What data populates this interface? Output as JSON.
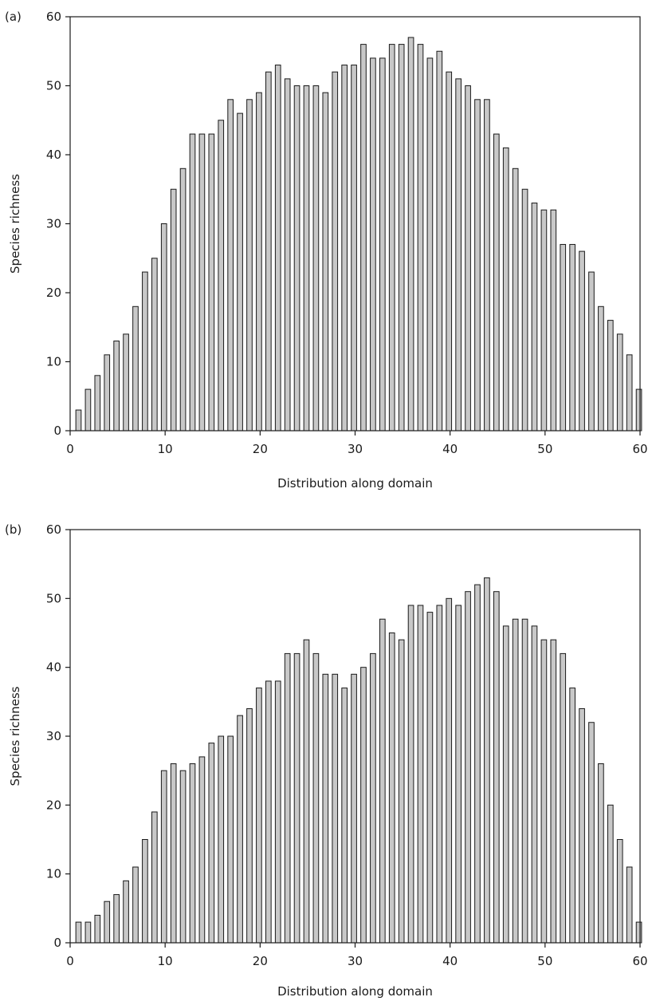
{
  "chart_data": [
    {
      "type": "bar",
      "panel_label": "(a)",
      "title": "",
      "xlabel": "Distribution along domain",
      "ylabel": "Species richness",
      "xlim": [
        0,
        60
      ],
      "ylim": [
        0,
        60
      ],
      "xticks": [
        0,
        10,
        20,
        30,
        40,
        50,
        60
      ],
      "yticks": [
        0,
        10,
        20,
        30,
        40,
        50,
        60
      ],
      "grid": false,
      "bar_color": "#c8c8c8",
      "categories": [
        1,
        2,
        3,
        4,
        5,
        6,
        7,
        8,
        9,
        10,
        11,
        12,
        13,
        14,
        15,
        16,
        17,
        18,
        19,
        20,
        21,
        22,
        23,
        24,
        25,
        26,
        27,
        28,
        29,
        30,
        31,
        32,
        33,
        34,
        35,
        36,
        37,
        38,
        39,
        40,
        41,
        42,
        43,
        44,
        45,
        46,
        47,
        48,
        49,
        50,
        51,
        52,
        53,
        54,
        55,
        56,
        57,
        58,
        59,
        60
      ],
      "values": [
        3,
        6,
        8,
        11,
        13,
        14,
        18,
        23,
        25,
        30,
        35,
        38,
        43,
        43,
        43,
        45,
        48,
        46,
        48,
        49,
        52,
        53,
        51,
        50,
        50,
        50,
        49,
        52,
        53,
        53,
        56,
        54,
        54,
        56,
        56,
        57,
        56,
        54,
        55,
        52,
        51,
        50,
        48,
        48,
        43,
        41,
        38,
        35,
        33,
        32,
        32,
        27,
        27,
        26,
        23,
        18,
        16,
        14,
        11,
        6
      ]
    },
    {
      "type": "bar",
      "panel_label": "(b)",
      "title": "",
      "xlabel": "Distribution along domain",
      "ylabel": "Species richness",
      "xlim": [
        0,
        60
      ],
      "ylim": [
        0,
        60
      ],
      "xticks": [
        0,
        10,
        20,
        30,
        40,
        50,
        60
      ],
      "yticks": [
        0,
        10,
        20,
        30,
        40,
        50,
        60
      ],
      "grid": false,
      "bar_color": "#c8c8c8",
      "categories": [
        1,
        2,
        3,
        4,
        5,
        6,
        7,
        8,
        9,
        10,
        11,
        12,
        13,
        14,
        15,
        16,
        17,
        18,
        19,
        20,
        21,
        22,
        23,
        24,
        25,
        26,
        27,
        28,
        29,
        30,
        31,
        32,
        33,
        34,
        35,
        36,
        37,
        38,
        39,
        40,
        41,
        42,
        43,
        44,
        45,
        46,
        47,
        48,
        49,
        50,
        51,
        52,
        53,
        54,
        55,
        56,
        57,
        58,
        59,
        60
      ],
      "values": [
        3,
        3,
        4,
        6,
        7,
        9,
        11,
        15,
        19,
        25,
        26,
        25,
        26,
        27,
        29,
        30,
        30,
        33,
        34,
        37,
        38,
        38,
        42,
        42,
        44,
        42,
        39,
        39,
        37,
        39,
        40,
        42,
        47,
        45,
        44,
        49,
        49,
        48,
        49,
        50,
        49,
        51,
        52,
        53,
        51,
        46,
        47,
        47,
        46,
        44,
        44,
        42,
        37,
        34,
        32,
        26,
        20,
        15,
        11,
        3
      ]
    }
  ]
}
